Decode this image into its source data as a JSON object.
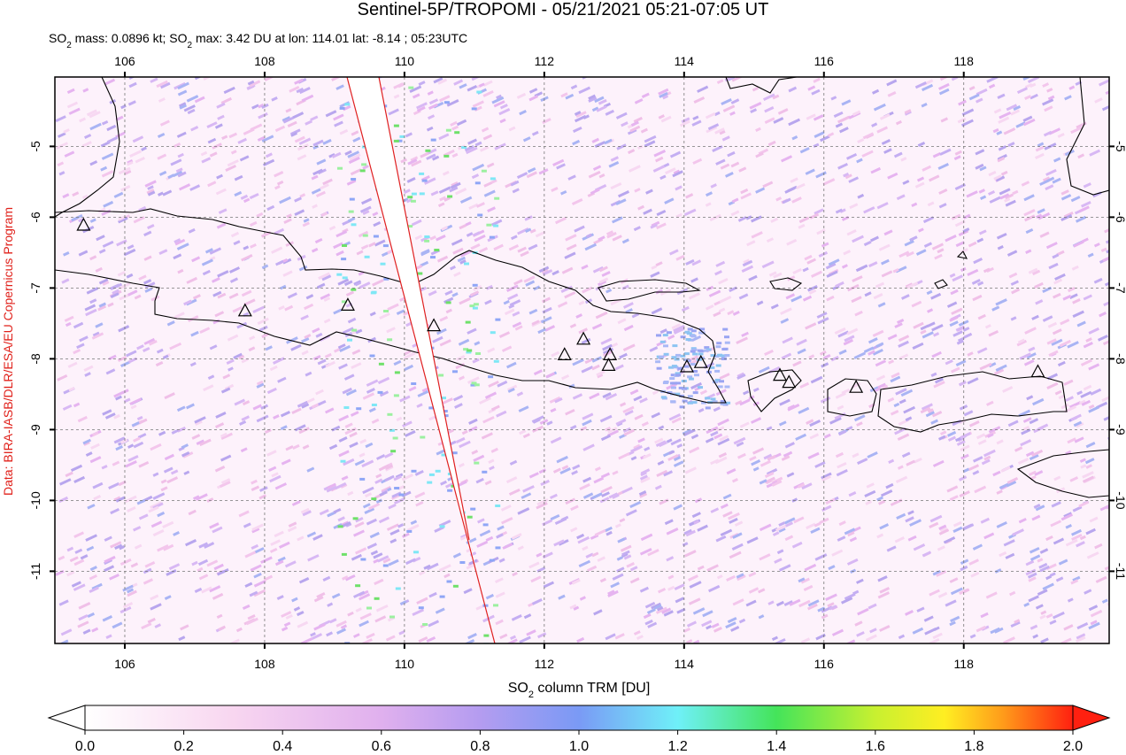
{
  "title": "Sentinel-5P/TROPOMI - 05/21/2021 05:21-07:05 UT",
  "subtitle": [
    "SO",
    "2",
    " mass: 0.0896 kt; SO",
    "2",
    " max: 3.42 DU at lon: 114.01 lat: -8.14 ; 05:23UTC"
  ],
  "credit": "Data: BIRA-IASB/DLR/ESA/EU Copernicus Program",
  "map": {
    "xlim": [
      105.0,
      120.08
    ],
    "ylim": [
      -12.02,
      -4.02
    ],
    "xticks": [
      106,
      108,
      110,
      112,
      114,
      116,
      118
    ],
    "yticks": [
      -5,
      -6,
      -7,
      -8,
      -9,
      -10,
      -11
    ],
    "grid": true,
    "volcanoes": {
      "lon": [
        105.41,
        107.72,
        109.19,
        110.42,
        112.29,
        112.56,
        112.94,
        112.92,
        114.04,
        114.24,
        115.37,
        115.5,
        116.46,
        119.06
      ],
      "lat": [
        -6.12,
        -7.33,
        -7.25,
        -7.54,
        -7.95,
        -7.73,
        -7.95,
        -8.1,
        -8.12,
        -8.06,
        -8.24,
        -8.34,
        -8.41,
        -8.19
      ]
    }
  },
  "colorbar": {
    "label": [
      "SO",
      "2",
      " column TRM [DU]"
    ],
    "lim": [
      0,
      2
    ],
    "ticks": [
      {
        "value": 0,
        "label": "0.0"
      },
      {
        "value": 0.2,
        "label": "0.2"
      },
      {
        "value": 0.4,
        "label": "0.4"
      },
      {
        "value": 0.6,
        "label": "0.6"
      },
      {
        "value": 0.8,
        "label": "0.8"
      },
      {
        "value": 1.0,
        "label": "1.0"
      },
      {
        "value": 1.2,
        "label": "1.2"
      },
      {
        "value": 1.4,
        "label": "1.4"
      },
      {
        "value": 1.6,
        "label": "1.6"
      },
      {
        "value": 1.8,
        "label": "1.8"
      },
      {
        "value": 2.0,
        "label": "2.0"
      }
    ]
  }
}
